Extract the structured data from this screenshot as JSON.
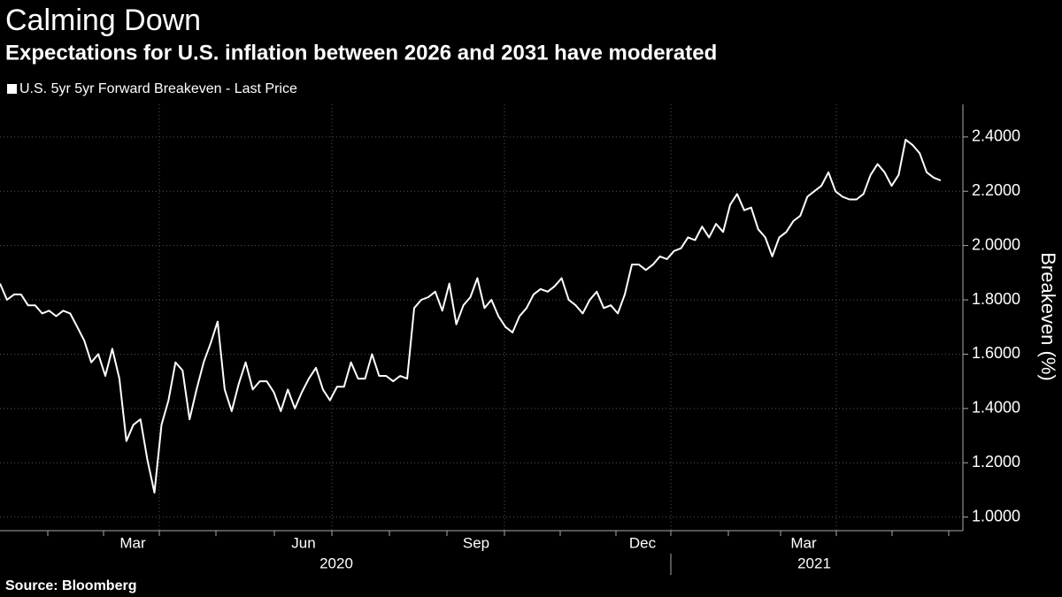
{
  "chart_data": {
    "type": "line",
    "title": "Calming Down",
    "subtitle": "Expectations for U.S. inflation between 2026 and 2031 have moderated",
    "y_axis_label": "Breakeven (%)",
    "source": "Source: Bloomberg",
    "month_labels": [
      "Mar",
      "Jun",
      "Sep",
      "Dec",
      "Mar"
    ],
    "year_labels": [
      "2020",
      "2021"
    ],
    "ylim": [
      0.95,
      2.52
    ],
    "yticks": [
      {
        "value": 1.0,
        "label": "1.0000"
      },
      {
        "value": 1.2,
        "label": "1.2000"
      },
      {
        "value": 1.4,
        "label": "1.4000"
      },
      {
        "value": 1.6,
        "label": "1.6000"
      },
      {
        "value": 1.8,
        "label": "1.8000"
      },
      {
        "value": 2.0,
        "label": "2.0000"
      },
      {
        "value": 2.2,
        "label": "2.2000"
      },
      {
        "value": 2.4,
        "label": "2.4000"
      }
    ],
    "grid": true,
    "series": [
      {
        "name": "U.S. 5yr 5yr Forward Breakeven - Last Price",
        "color": "#ffffff",
        "values": [
          1.86,
          1.8,
          1.82,
          1.82,
          1.78,
          1.78,
          1.75,
          1.76,
          1.74,
          1.76,
          1.75,
          1.7,
          1.65,
          1.57,
          1.6,
          1.52,
          1.62,
          1.51,
          1.28,
          1.34,
          1.36,
          1.21,
          1.09,
          1.34,
          1.43,
          1.57,
          1.54,
          1.36,
          1.47,
          1.57,
          1.64,
          1.72,
          1.47,
          1.39,
          1.49,
          1.57,
          1.47,
          1.5,
          1.5,
          1.46,
          1.39,
          1.47,
          1.4,
          1.46,
          1.51,
          1.55,
          1.47,
          1.43,
          1.48,
          1.48,
          1.57,
          1.51,
          1.51,
          1.6,
          1.52,
          1.52,
          1.5,
          1.52,
          1.51,
          1.77,
          1.8,
          1.81,
          1.83,
          1.76,
          1.86,
          1.71,
          1.78,
          1.81,
          1.88,
          1.77,
          1.8,
          1.74,
          1.7,
          1.68,
          1.74,
          1.77,
          1.82,
          1.84,
          1.83,
          1.85,
          1.88,
          1.8,
          1.78,
          1.75,
          1.8,
          1.83,
          1.77,
          1.78,
          1.75,
          1.82,
          1.93,
          1.93,
          1.91,
          1.93,
          1.96,
          1.95,
          1.98,
          1.99,
          2.03,
          2.02,
          2.07,
          2.03,
          2.08,
          2.05,
          2.15,
          2.19,
          2.13,
          2.14,
          2.06,
          2.03,
          1.96,
          2.03,
          2.05,
          2.09,
          2.11,
          2.18,
          2.2,
          2.22,
          2.27,
          2.2,
          2.18,
          2.17,
          2.17,
          2.19,
          2.26,
          2.3,
          2.27,
          2.22,
          2.26,
          2.39,
          2.37,
          2.34,
          2.27,
          2.25,
          2.24
        ]
      }
    ]
  }
}
